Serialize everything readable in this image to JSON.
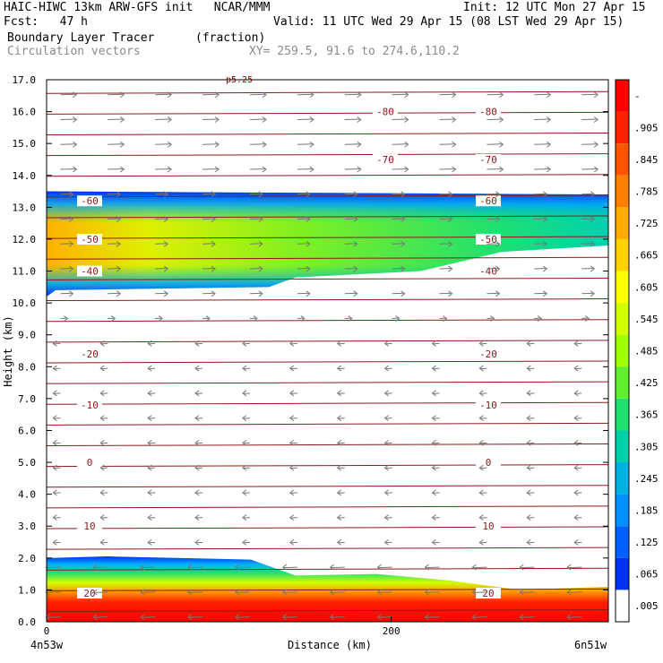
{
  "header": {
    "line1_left": "HAIC-HIWC 13km ARW-GFS init   NCAR/MMM",
    "line1_right": "Init: 12 UTC Mon 27 Apr 15",
    "line2_left": "Fcst:   47 h",
    "line2_right": "Valid: 11 UTC Wed 29 Apr 15 (08 LST Wed 29 Apr 15)",
    "line3_left": "Boundary Layer Tracer",
    "line3_right": "(fraction)",
    "line4_left": "Circulation vectors",
    "line4_right": "XY= 259.5, 91.6 to 274.6,110.2"
  },
  "chart_data": {
    "type": "heatmap",
    "ylabel": "Height (km)",
    "xlabel": "Distance (km)",
    "x_endpoints": [
      "4n53w",
      "6n51w"
    ],
    "x_ticks": [
      "0",
      "200"
    ],
    "xlim": [
      0,
      326
    ],
    "y_ticks": [
      "0.0",
      "1.0",
      "2.0",
      "3.0",
      "4.0",
      "5.0",
      "6.0",
      "7.0",
      "8.0",
      "9.0",
      "10.0",
      "11.0",
      "12.0",
      "13.0",
      "14.0",
      "15.0",
      "16.0",
      "17.0"
    ],
    "ylim": [
      0,
      17
    ],
    "colorbar_labels": [
      "-",
      ".905",
      ".845",
      ".785",
      ".725",
      ".665",
      ".605",
      ".545",
      ".485",
      ".425",
      ".365",
      ".305",
      ".245",
      ".185",
      ".125",
      ".065",
      ".005"
    ],
    "colorbar_colors": [
      "#ff0000",
      "#ff2200",
      "#ff5500",
      "#ff8000",
      "#ffaa00",
      "#ffd200",
      "#ffff00",
      "#d2ff00",
      "#a0ff00",
      "#60f030",
      "#20e070",
      "#00d0a8",
      "#00b0e0",
      "#0090ff",
      "#0060ff",
      "#0030f0",
      "#ffffff"
    ],
    "temperature_contours": [
      {
        "label": "-80",
        "y": 16.0
      },
      {
        "label": "-70",
        "y": 14.5
      },
      {
        "label": "-60",
        "y": 13.2
      },
      {
        "label": "-50",
        "y": 12.0
      },
      {
        "label": "-40",
        "y": 11.0
      },
      {
        "label": "-20",
        "y": 8.4
      },
      {
        "label": "-10",
        "y": 6.8
      },
      {
        "label": "0",
        "y": 5.0
      },
      {
        "label": "10",
        "y": 3.0
      },
      {
        "label": "20",
        "y": 0.9
      }
    ],
    "upper_layer": {
      "bottom_left": 10.4,
      "top_left": 13.5,
      "bottom_right": 11.8,
      "top_right": 13.4,
      "core_value": 0.665
    },
    "surface_layer": {
      "top_left": 2.0,
      "top_right": 1.1,
      "core_value": 0.905
    },
    "top_label": "p5.25"
  }
}
